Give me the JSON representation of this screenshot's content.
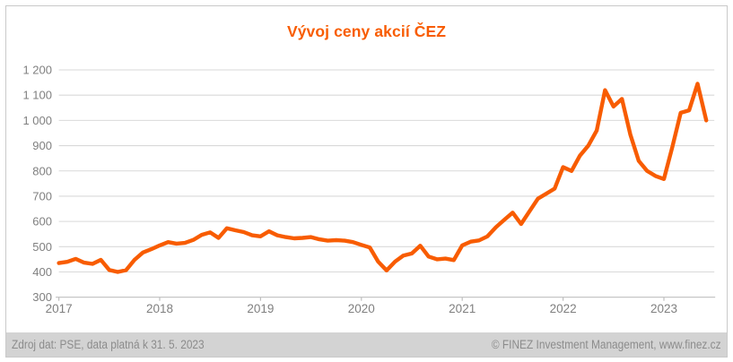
{
  "title": "Vývoj ceny akcií ČEZ",
  "footer": {
    "source": "Zdroj dat: PSE, data platná k 31. 5. 2023",
    "credit": "© FINEZ Investment Management, www.finez.cz"
  },
  "colors": {
    "background": "#FFFFFF",
    "accent_orange": "#F85C01",
    "grid": "#D9D9D9",
    "axis": "#BFBFBF",
    "tick_label": "#808080",
    "footer_bg": "#D3D3D3",
    "footer_text": "#8C8C8C",
    "frame_border": "#C9C9C9"
  },
  "chart_data": {
    "type": "line",
    "title": "Vývoj ceny akcií ČEZ",
    "xlabel": "",
    "ylabel": "",
    "xlim": [
      2017,
      2023.5
    ],
    "ylim": [
      300,
      1200
    ],
    "x_ticks": [
      2017,
      2018,
      2019,
      2020,
      2021,
      2022,
      2023
    ],
    "y_ticks": [
      300,
      400,
      500,
      600,
      700,
      800,
      900,
      1000,
      1100,
      1200
    ],
    "y_tick_labels": [
      "300",
      "400",
      "500",
      "600",
      "700",
      "800",
      "900",
      "1 000",
      "1 100",
      "1 200"
    ],
    "grid": "horizontal-only",
    "legend": false,
    "series": [
      {
        "name": "ČEZ",
        "color": "#F85C01",
        "monthly_from": "2017-01",
        "values": [
          435,
          440,
          452,
          437,
          432,
          448,
          408,
          400,
          407,
          448,
          477,
          490,
          505,
          518,
          512,
          515,
          527,
          547,
          557,
          535,
          573,
          565,
          558,
          545,
          541,
          561,
          545,
          538,
          533,
          535,
          538,
          529,
          524,
          526,
          524,
          518,
          507,
          497,
          441,
          406,
          441,
          465,
          473,
          504,
          461,
          450,
          453,
          447,
          505,
          520,
          525,
          541,
          577,
          606,
          635,
          590,
          640,
          690,
          710,
          730,
          815,
          800,
          860,
          900,
          960,
          1120,
          1055,
          1085,
          945,
          840,
          800,
          780,
          768,
          895,
          1030,
          1040,
          1145
        ],
        "final_point": {
          "date": "2023-05-31",
          "decimal_year": 2023.42,
          "value": 1000
        }
      }
    ]
  }
}
